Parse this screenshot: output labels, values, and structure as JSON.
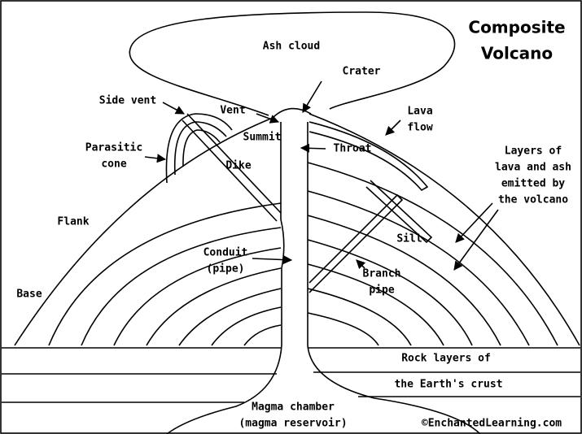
{
  "title": [
    "Composite",
    "Volcano"
  ],
  "labels": [
    {
      "lines": [
        "Ash cloud"
      ]
    },
    {
      "lines": [
        "Crater"
      ]
    },
    {
      "lines": [
        "Side vent"
      ]
    },
    {
      "lines": [
        "Vent"
      ]
    },
    {
      "lines": [
        "Lava",
        "flow"
      ]
    },
    {
      "lines": [
        "Summit"
      ]
    },
    {
      "lines": [
        "Parasitic",
        "cone"
      ]
    },
    {
      "lines": [
        "Throat"
      ]
    },
    {
      "lines": [
        "Dike"
      ]
    },
    {
      "lines": [
        "Layers of",
        "lava and ash",
        "emitted by",
        "the volcano"
      ]
    },
    {
      "lines": [
        "Flank"
      ]
    },
    {
      "lines": [
        "Sill"
      ]
    },
    {
      "lines": [
        "Conduit",
        "(pipe)"
      ]
    },
    {
      "lines": [
        "Branch",
        "pipe"
      ]
    },
    {
      "lines": [
        "Base"
      ]
    },
    {
      "lines": [
        "Rock layers of"
      ]
    },
    {
      "lines": [
        "the Earth's crust"
      ]
    },
    {
      "lines": [
        "Magma chamber",
        "(magma reservoir)"
      ]
    }
  ],
  "copyright": "©EnchantedLearning.com"
}
